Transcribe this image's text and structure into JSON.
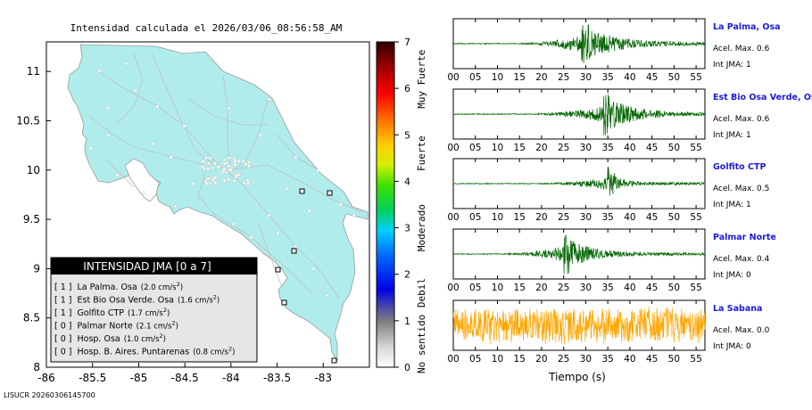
{
  "title": "Intensidad calculada el 2026/03/06_08:56:58_AM",
  "footer": "LISUCR 20260306145700",
  "map": {
    "x_ticks": [
      "-86",
      "-85.5",
      "-85",
      "-84.5",
      "-84",
      "-83.5",
      "-83"
    ],
    "y_ticks": [
      "11",
      "10.5",
      "10",
      "9.5",
      "9",
      "8.5",
      "8"
    ],
    "xlim": [
      -86,
      -82.5
    ],
    "ylim": [
      8,
      11.3
    ],
    "land_color": "#b0ecec"
  },
  "legend": {
    "title": "INTENSIDAD JMA [0 a 7]",
    "items": [
      {
        "jma": "[ 1 ]",
        "name": "La Palma. Osa",
        "value": "(2.0 cm/s",
        "exp": "2",
        "close": ")"
      },
      {
        "jma": "[ 1 ]",
        "name": "Est Bio Osa Verde. Osa",
        "value": "(1.6 cm/s",
        "exp": "2",
        "close": ")"
      },
      {
        "jma": "[ 1 ]",
        "name": "Golfito CTP",
        "value": "(1.7 cm/s",
        "exp": "2",
        "close": ")"
      },
      {
        "jma": "[ 0 ]",
        "name": "Palmar Norte",
        "value": "(2.1 cm/s",
        "exp": "2",
        "close": ")"
      },
      {
        "jma": "[ 0 ]",
        "name": "Hosp. Osa",
        "value": "(1.0 cm/s",
        "exp": "2",
        "close": ")"
      },
      {
        "jma": "[ 0 ]",
        "name": "Hosp. B. Aires. Puntarenas",
        "value": "(0.8 cm/s",
        "exp": "2",
        "close": ")"
      }
    ]
  },
  "colorbar": {
    "ticks": [
      "0",
      "1",
      "2",
      "3",
      "4",
      "5",
      "6",
      "7"
    ],
    "categories": [
      "No sentido",
      "Debil",
      "Moderado",
      "Fuerte",
      "Muy Fuerte"
    ]
  },
  "chart_data": {
    "type": "line",
    "xlabel": "Tiempo (s)",
    "x_ticks": [
      "00",
      "05",
      "10",
      "15",
      "20",
      "25",
      "30",
      "35",
      "40",
      "45",
      "50",
      "55"
    ],
    "xlim": [
      0,
      57
    ],
    "series": [
      {
        "name": "La Palma, Osa",
        "accel_label": "Acel. Max. 0.6",
        "jma_label": "Int JMA: 1",
        "color": "#006400",
        "onset": 15,
        "peak": 29,
        "peak_amp": 1.0,
        "decay": 7
      },
      {
        "name": "Est Bio Osa Verde, Osa",
        "accel_label": "Acel. Max. 0.6",
        "jma_label": "Int JMA: 1",
        "color": "#006400",
        "onset": 18,
        "peak": 34,
        "peak_amp": 1.0,
        "decay": 6
      },
      {
        "name": "Golfito CTP",
        "accel_label": "Acel. Max. 0.5",
        "jma_label": "Int JMA: 1",
        "color": "#006400",
        "onset": 20,
        "peak": 35,
        "peak_amp": 0.75,
        "decay": 2.5
      },
      {
        "name": "Palmar Norte",
        "accel_label": "Acel. Max. 0.4",
        "jma_label": "Int JMA: 0",
        "color": "#006400",
        "onset": 12,
        "peak": 25,
        "peak_amp": 1.0,
        "decay": 5
      },
      {
        "name": "La Sabana",
        "accel_label": "Acel. Max. 0.0",
        "jma_label": "Int JMA: 0",
        "color": "#ffa500",
        "onset": 0,
        "peak": 0,
        "peak_amp": 0.0,
        "decay": 1
      }
    ]
  }
}
